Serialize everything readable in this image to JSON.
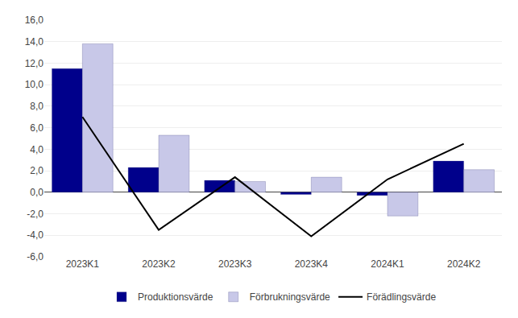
{
  "chart_data": {
    "type": "bar",
    "categories": [
      "2023K1",
      "2023K2",
      "2023K3",
      "2023K4",
      "2024K1",
      "2024K2"
    ],
    "series": [
      {
        "name": "Produktionsvärde",
        "color": "#00008B",
        "values": [
          11.5,
          2.3,
          1.1,
          -0.2,
          -0.3,
          2.9
        ]
      },
      {
        "name": "Förbrukningsvärde",
        "color": "#C8C8E8",
        "values": [
          13.8,
          5.3,
          1.0,
          1.4,
          -2.2,
          2.1
        ]
      },
      {
        "name": "Förädlingsvärde",
        "type": "line",
        "color": "#000000",
        "values": [
          7.0,
          -3.5,
          1.4,
          -4.1,
          1.2,
          4.5
        ]
      }
    ],
    "ylim": [
      -6.0,
      16.0
    ],
    "yticks": [
      {
        "value": -6.0,
        "label": "-6,0"
      },
      {
        "value": -4.0,
        "label": "-4,0"
      },
      {
        "value": -2.0,
        "label": "-2,0"
      },
      {
        "value": 0.0,
        "label": "0,0"
      },
      {
        "value": 2.0,
        "label": "2,0"
      },
      {
        "value": 4.0,
        "label": "4,0"
      },
      {
        "value": 6.0,
        "label": "6,0"
      },
      {
        "value": 8.0,
        "label": "8,0"
      },
      {
        "value": 10.0,
        "label": "10,0"
      },
      {
        "value": 12.0,
        "label": "12,0"
      },
      {
        "value": 14.0,
        "label": "14,0"
      },
      {
        "value": 16.0,
        "label": "16,0"
      }
    ],
    "grid": true,
    "legend": "bottom"
  }
}
